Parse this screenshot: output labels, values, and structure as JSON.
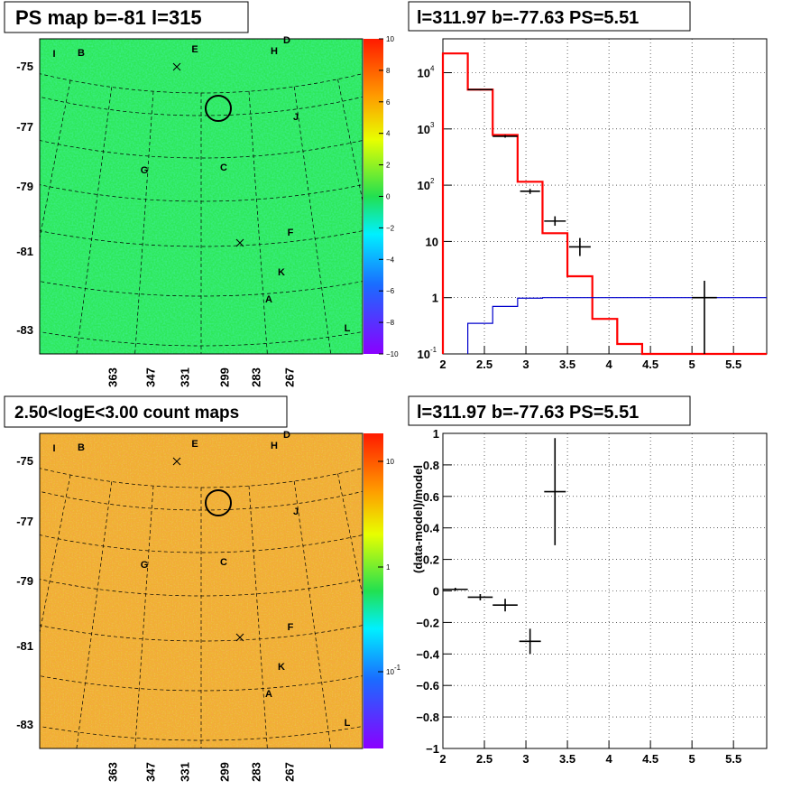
{
  "panels": {
    "top_left_title": "PS map b=-81 l=315",
    "bottom_left_title": "2.50<logE<3.00 count maps",
    "top_right_title": "l=311.97 b=-77.63 PS=5.51",
    "bottom_right_title": "l=311.97 b=-77.63 PS=5.51"
  },
  "maps": {
    "lat_ticks": [
      "-75",
      "-77",
      "-79",
      "-81",
      "-83"
    ],
    "lon_ticks": [
      "363",
      "347",
      "331",
      "299",
      "283",
      "267"
    ],
    "source_labels": [
      "I",
      "B",
      "E",
      "D",
      "H",
      "J",
      "G",
      "C",
      "F",
      "K",
      "A",
      "L"
    ],
    "ps_colorbar_ticks": [
      "10",
      "8",
      "6",
      "4",
      "2",
      "0",
      "−2",
      "−4",
      "−6",
      "−8",
      "−10"
    ],
    "count_colorbar_ticks": [
      "10",
      "1"
    ],
    "count_colorbar_small_tick": "10",
    "count_colorbar_small_exp": "-1",
    "ps_base_color": "#2ee85a",
    "count_base_color": "#f0b030"
  },
  "chart_data": [
    {
      "type": "line",
      "panel": "top-right",
      "title": "l=311.97 b=-77.63 PS=5.51",
      "xlabel": "",
      "ylabel": "",
      "xlim": [
        2,
        5.9
      ],
      "ylim": [
        0.1,
        40000
      ],
      "ylog": true,
      "grid": true,
      "x_ticks": [
        "2",
        "2.5",
        "3",
        "3.5",
        "4",
        "4.5",
        "5",
        "5.5"
      ],
      "y_ticks": [
        {
          "base": "10",
          "exp": "4"
        },
        {
          "base": "10",
          "exp": "3"
        },
        {
          "base": "10",
          "exp": "2"
        },
        {
          "base": "10",
          "exp": ""
        },
        {
          "base": "1",
          "exp": ""
        },
        {
          "base": "10",
          "exp": "-1"
        }
      ],
      "series": [
        {
          "role": "model",
          "color": "#ff0000",
          "style": "step",
          "bin_edges": [
            2.0,
            2.3,
            2.6,
            2.9,
            3.2,
            3.5,
            3.8,
            4.1,
            4.4,
            5.9
          ],
          "values": [
            22000,
            5000,
            780,
            115,
            14,
            2.4,
            0.42,
            0.15,
            0.1
          ]
        },
        {
          "role": "background",
          "color": "#0000cc",
          "style": "step",
          "bin_edges": [
            2.3,
            2.6,
            2.9,
            3.2,
            5.9
          ],
          "values": [
            0.35,
            0.7,
            0.98,
            1.0
          ]
        },
        {
          "role": "data",
          "color": "#000000",
          "style": "errorbar",
          "points": [
            {
              "x": 2.45,
              "xerr": 0.15,
              "y": 5000,
              "ylo": 4850,
              "yhi": 5150
            },
            {
              "x": 2.75,
              "xerr": 0.15,
              "y": 740,
              "ylo": 700,
              "yhi": 780
            },
            {
              "x": 3.05,
              "xerr": 0.12,
              "y": 78,
              "ylo": 70,
              "yhi": 86
            },
            {
              "x": 3.35,
              "xerr": 0.13,
              "y": 23,
              "ylo": 19,
              "yhi": 28
            },
            {
              "x": 3.65,
              "xerr": 0.13,
              "y": 8,
              "ylo": 5.5,
              "yhi": 11.5
            },
            {
              "x": 5.15,
              "xerr": 0.15,
              "y": 1,
              "ylo": 0.1,
              "yhi": 2
            }
          ]
        }
      ]
    },
    {
      "type": "scatter",
      "panel": "bottom-right",
      "title": "l=311.97 b=-77.63 PS=5.51",
      "xlabel": "",
      "ylabel": "(data-model)/model",
      "xlim": [
        2,
        5.9
      ],
      "ylim": [
        -1,
        1
      ],
      "grid": true,
      "x_ticks": [
        "2",
        "2.5",
        "3",
        "3.5",
        "4",
        "4.5",
        "5",
        "5.5"
      ],
      "y_ticks": [
        "1",
        "0.8",
        "0.6",
        "0.4",
        "0.2",
        "0",
        "−0.2",
        "−0.4",
        "−0.6",
        "−0.8",
        "−1"
      ],
      "series": [
        {
          "role": "residual",
          "color": "#000000",
          "points": [
            {
              "x": 2.15,
              "xerr": 0.15,
              "y": 0.01,
              "ylo": 0.0,
              "yhi": 0.02
            },
            {
              "x": 2.45,
              "xerr": 0.15,
              "y": -0.04,
              "ylo": -0.06,
              "yhi": -0.02
            },
            {
              "x": 2.75,
              "xerr": 0.15,
              "y": -0.09,
              "ylo": -0.13,
              "yhi": -0.05
            },
            {
              "x": 3.05,
              "xerr": 0.13,
              "y": -0.32,
              "ylo": -0.4,
              "yhi": -0.24
            },
            {
              "x": 3.35,
              "xerr": 0.13,
              "y": 0.63,
              "ylo": 0.29,
              "yhi": 0.97
            }
          ]
        }
      ]
    }
  ]
}
